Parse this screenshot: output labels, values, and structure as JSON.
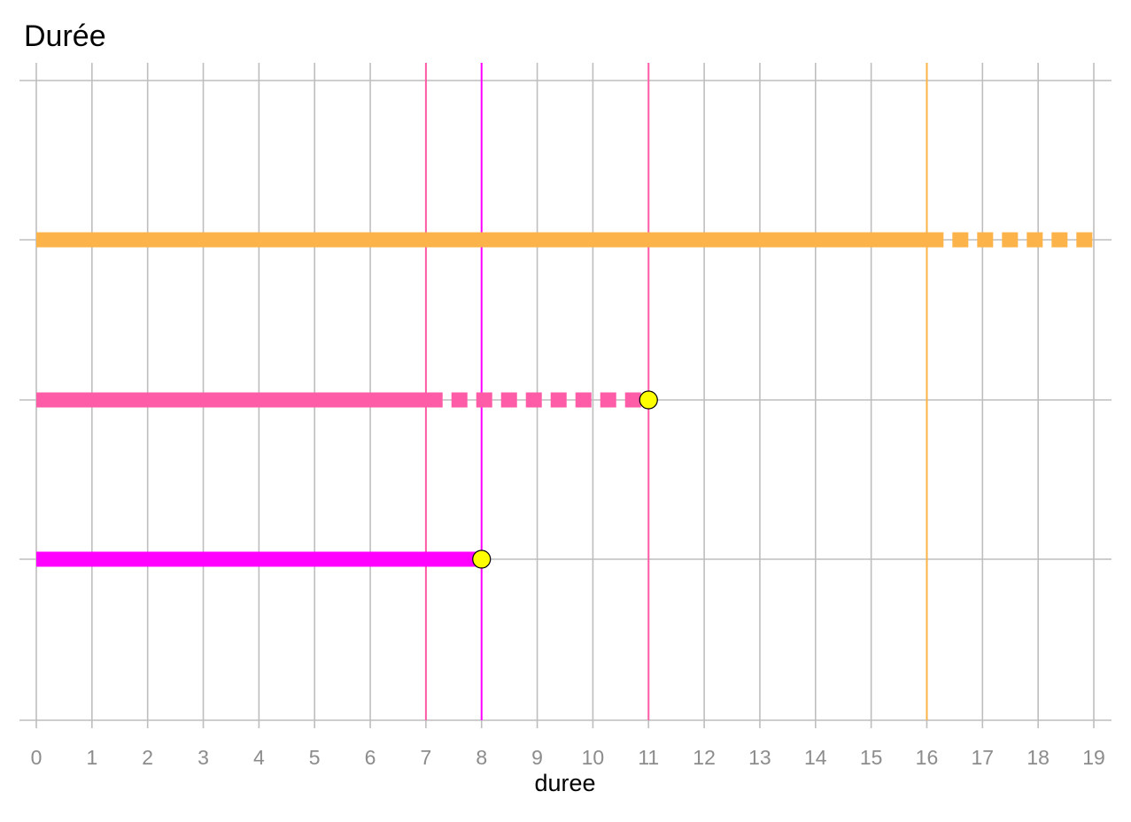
{
  "chart_data": {
    "type": "timeline",
    "title": "Durée",
    "xlabel": "duree",
    "ylabel": "",
    "xlim": [
      0,
      19
    ],
    "x_ticks": [
      0,
      1,
      2,
      3,
      4,
      5,
      6,
      7,
      8,
      9,
      10,
      11,
      12,
      13,
      14,
      15,
      16,
      17,
      18,
      19
    ],
    "grid": true,
    "series": [
      {
        "color": "#FBB34A",
        "solid_start": 0,
        "solid_end": 16.3,
        "dashed_end": 19,
        "end_marker": false,
        "reference_line": 16
      },
      {
        "color": "#FF5CA8",
        "solid_start": 0,
        "solid_end": 7.3,
        "dashed_end": 11,
        "end_marker": true,
        "reference_line": 11,
        "reference_line_2": 7
      },
      {
        "color": "#FF00FF",
        "solid_start": 0,
        "solid_end": 8,
        "dashed_end": 8,
        "end_marker": true,
        "reference_line": 8
      }
    ],
    "marker_color": "#FFFF00",
    "grid_color": "#BEBEBE"
  }
}
